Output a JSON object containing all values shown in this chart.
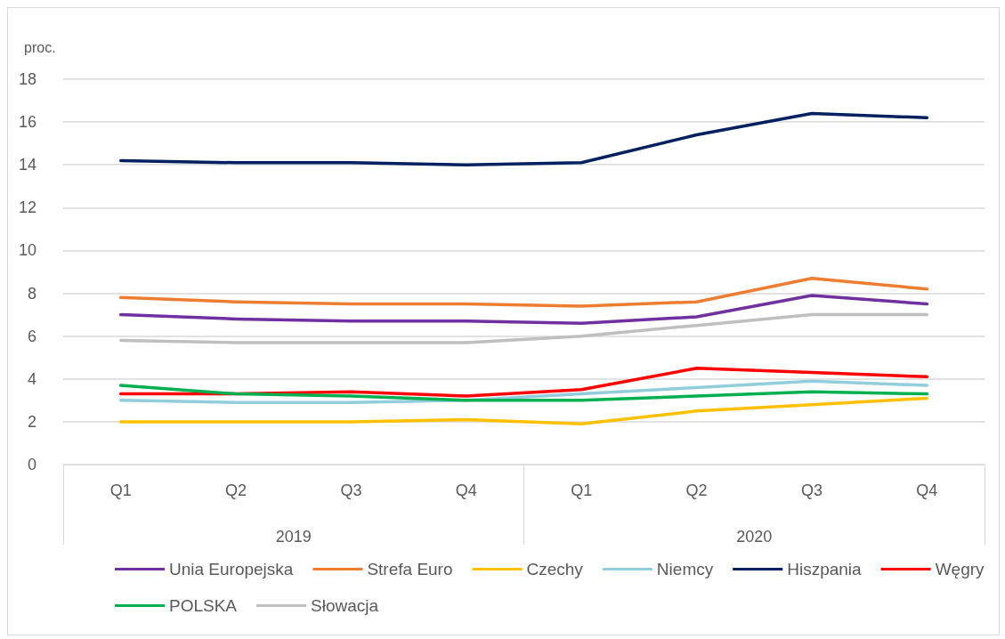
{
  "chart_data": {
    "type": "line",
    "ylabel": "proc.",
    "categories": [
      "Q1",
      "Q2",
      "Q3",
      "Q4",
      "Q1",
      "Q2",
      "Q3",
      "Q4"
    ],
    "annotations": [
      "2019",
      "2020"
    ],
    "ylim": [
      0,
      18
    ],
    "yticks": [
      0,
      2,
      4,
      6,
      8,
      10,
      12,
      14,
      16,
      18
    ],
    "grid": "y",
    "legend": "bottom",
    "marker": "none",
    "line_style": "solid",
    "series": [
      {
        "name": "Unia Europejska",
        "color": "#7030a0",
        "values": [
          7.0,
          6.8,
          6.7,
          6.7,
          6.6,
          6.9,
          7.9,
          7.5
        ]
      },
      {
        "name": "Strefa Euro",
        "color": "#ed7d31",
        "values": [
          7.8,
          7.6,
          7.5,
          7.5,
          7.4,
          7.6,
          8.7,
          8.2
        ]
      },
      {
        "name": "Czechy",
        "color": "#ffc000",
        "values": [
          2.0,
          2.0,
          2.0,
          2.1,
          1.9,
          2.5,
          2.8,
          3.1
        ]
      },
      {
        "name": "Niemcy",
        "color": "#92cddc",
        "values": [
          3.0,
          2.9,
          2.9,
          3.0,
          3.3,
          3.6,
          3.9,
          3.7
        ]
      },
      {
        "name": "Hiszpania",
        "color": "#002060",
        "values": [
          14.2,
          14.1,
          14.1,
          14.0,
          14.1,
          15.4,
          16.4,
          16.2
        ]
      },
      {
        "name": "Węgry",
        "color": "#ff0000",
        "values": [
          3.3,
          3.3,
          3.4,
          3.2,
          3.5,
          4.5,
          4.3,
          4.1
        ]
      },
      {
        "name": "POLSKA",
        "color": "#00b050",
        "values": [
          3.7,
          3.3,
          3.2,
          3.0,
          3.0,
          3.2,
          3.4,
          3.3
        ]
      },
      {
        "name": "Słowacja",
        "color": "#bfbfbf",
        "values": [
          5.8,
          5.7,
          5.7,
          5.7,
          6.0,
          6.5,
          7.0,
          7.0
        ]
      }
    ]
  }
}
